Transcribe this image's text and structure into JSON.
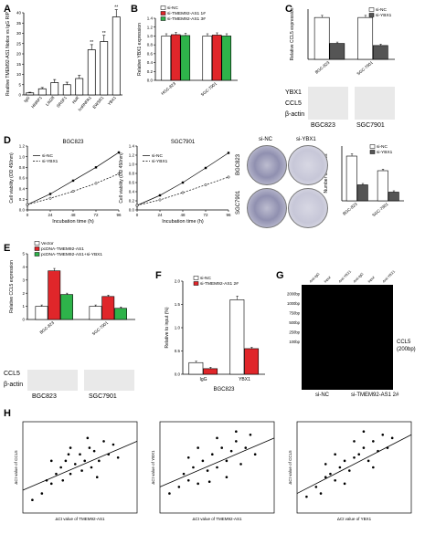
{
  "panels": {
    "A": "A",
    "B": "B",
    "C": "C",
    "D": "D",
    "E": "E",
    "F": "F",
    "G": "G",
    "H": "H"
  },
  "chart_data": [
    {
      "id": "A",
      "type": "bar",
      "ylabel": "Realtive TMEM92-AS1 Notice vs IgG RIP",
      "categories": [
        "IgG",
        "HNRP1",
        "LIN28",
        "SRSF1",
        "HuR",
        "hnRNPA1",
        "EWSR1",
        "YBX1"
      ],
      "values": [
        1,
        3,
        6,
        5,
        8,
        22,
        26,
        38
      ],
      "errors": [
        0.3,
        0.6,
        1.5,
        1.2,
        1.5,
        2.5,
        3.0,
        3.5
      ],
      "yticks": [
        0,
        5,
        10,
        15,
        20,
        25,
        30,
        35,
        40
      ],
      "ylim": [
        0,
        40
      ],
      "sig_labels": [
        "",
        "",
        "",
        "",
        "",
        "**",
        "**",
        "**"
      ]
    },
    {
      "id": "B",
      "type": "bar",
      "ylabel": "Relative YBX1 expression",
      "categories": [
        "HGC-823",
        "SGC-7901"
      ],
      "series": [
        {
          "name": "si-NC",
          "color": "#ffffff",
          "values": [
            1.0,
            1.0
          ]
        },
        {
          "name": "si-TMEM92-AS1 1#",
          "color": "#e0262a",
          "values": [
            1.03,
            1.02
          ]
        },
        {
          "name": "si-TMEM92-AS1 3#",
          "color": "#2eb34a",
          "values": [
            1.01,
            1.0
          ]
        }
      ],
      "yticks": [
        "0.0",
        "0.2",
        "0.4",
        "0.6",
        "0.8",
        "1.0",
        "1.2",
        "1.4"
      ],
      "ylim": [
        0,
        1.4
      ]
    },
    {
      "id": "C",
      "type": "bar",
      "ylabel": "Relative CCL5 expression",
      "categories": [
        "BGC-823",
        "SGC-7901"
      ],
      "series": [
        {
          "name": "si-NC",
          "color": "#ffffff",
          "values": [
            1.0,
            1.0
          ]
        },
        {
          "name": "si-YBX1",
          "color": "#555555",
          "values": [
            0.38,
            0.33
          ]
        }
      ],
      "ylim": [
        0,
        1.2
      ]
    },
    {
      "id": "D1",
      "type": "line",
      "title": "BGC823",
      "xlabel": "Incubation time (h)",
      "ylabel": "Cell viability (OD 450nm)",
      "x": [
        0,
        24,
        48,
        72,
        96
      ],
      "xticks": [
        "0",
        "24",
        "48",
        "72",
        "96"
      ],
      "yticks": [
        "0.0",
        "0.2",
        "0.4",
        "0.6",
        "0.8",
        "1.0",
        "1.2"
      ],
      "ylim": [
        0,
        1.2
      ],
      "series": [
        {
          "name": "si-NC",
          "values": [
            0.1,
            0.3,
            0.55,
            0.8,
            1.08
          ]
        },
        {
          "name": "si-YBX1",
          "values": [
            0.1,
            0.22,
            0.35,
            0.5,
            0.68
          ]
        }
      ]
    },
    {
      "id": "D2",
      "type": "line",
      "title": "SGC7901",
      "xlabel": "Incubation time (h)",
      "ylabel": "Cell viability (OD 450nm)",
      "x": [
        0,
        24,
        48,
        72,
        96
      ],
      "xticks": [
        "0",
        "24",
        "48",
        "72",
        "96"
      ],
      "yticks": [
        "0.0",
        "0.2",
        "0.4",
        "0.6",
        "0.8",
        "1.0",
        "1.2",
        "1.4"
      ],
      "ylim": [
        0,
        1.4
      ],
      "series": [
        {
          "name": "si-NC",
          "values": [
            0.1,
            0.32,
            0.6,
            0.92,
            1.25
          ]
        },
        {
          "name": "si-YBX1",
          "values": [
            0.1,
            0.22,
            0.38,
            0.55,
            0.72
          ]
        }
      ]
    },
    {
      "id": "D3",
      "type": "bar",
      "ylabel": "Number of colonies",
      "categories": [
        "BGC-823",
        "SGC-7901"
      ],
      "series": [
        {
          "name": "si-NC",
          "color": "#ffffff",
          "values": [
            490,
            330
          ]
        },
        {
          "name": "si-YBX1",
          "color": "#555555",
          "values": [
            175,
            95
          ]
        }
      ],
      "ylim": [
        0,
        600
      ]
    },
    {
      "id": "E",
      "type": "bar",
      "ylabel": "Relative CCL5 expression",
      "categories": [
        "BGC-823",
        "SGC-7901"
      ],
      "series": [
        {
          "name": "Vector",
          "color": "#ffffff",
          "values": [
            1.0,
            1.0
          ]
        },
        {
          "name": "pcDNA-TMEM92-AS1",
          "color": "#e0262a",
          "values": [
            3.7,
            1.75
          ]
        },
        {
          "name": "pcDNA-TMEM92-AS1+si-YBX1",
          "color": "#2eb34a",
          "values": [
            1.9,
            0.85
          ]
        }
      ],
      "yticks": [
        "0",
        "1",
        "2",
        "3",
        "4",
        "5"
      ],
      "ylim": [
        0,
        5
      ]
    },
    {
      "id": "F",
      "type": "bar",
      "xlabel": "BGC823",
      "ylabel": "Relative to input (%)",
      "categories": [
        "IgG",
        "YBX1"
      ],
      "series": [
        {
          "name": "si-NC",
          "color": "#ffffff",
          "values": [
            0.25,
            1.6
          ]
        },
        {
          "name": "si-TMEM92-AS1 2#",
          "color": "#e0262a",
          "values": [
            0.12,
            0.55
          ]
        }
      ],
      "yticks": [
        "0.0",
        "0.5",
        "1.0",
        "1.5",
        "2.0"
      ],
      "ylim": [
        0,
        2.0
      ]
    },
    {
      "id": "H1",
      "type": "scatter",
      "xlabel": "ΔCt value of TMEM92-AS1",
      "ylabel": "ΔCt value of CCL5",
      "points": [
        [
          1,
          2
        ],
        [
          2,
          3
        ],
        [
          2.5,
          5
        ],
        [
          3,
          4.5
        ],
        [
          3.5,
          6
        ],
        [
          4,
          7
        ],
        [
          4.2,
          5
        ],
        [
          4.5,
          8
        ],
        [
          5,
          6
        ],
        [
          5.5,
          7.5
        ],
        [
          6,
          9
        ],
        [
          6.2,
          6.5
        ],
        [
          6.5,
          8
        ],
        [
          7,
          10
        ],
        [
          7.2,
          7
        ],
        [
          7.5,
          9.5
        ],
        [
          8,
          8
        ],
        [
          8.5,
          11
        ],
        [
          9,
          9
        ],
        [
          9.5,
          10.5
        ],
        [
          10,
          8.5
        ],
        [
          5,
          10
        ],
        [
          3,
          8
        ],
        [
          7.8,
          5.5
        ],
        [
          6.8,
          11.5
        ],
        [
          4.8,
          9
        ]
      ],
      "fit": [
        [
          0,
          3.5
        ],
        [
          12,
          11
        ]
      ],
      "xlim": [
        0,
        12
      ],
      "ylim": [
        0,
        14
      ]
    },
    {
      "id": "H2",
      "type": "scatter",
      "xlabel": "ΔCt value of TMEM92-AS1",
      "ylabel": "ΔCt value of YBX1",
      "points": [
        [
          1,
          3
        ],
        [
          2,
          4
        ],
        [
          2.5,
          6
        ],
        [
          3,
          5
        ],
        [
          3.5,
          7
        ],
        [
          4,
          4.5
        ],
        [
          4.5,
          8
        ],
        [
          5,
          6.5
        ],
        [
          5.5,
          9
        ],
        [
          6,
          7
        ],
        [
          6.5,
          10
        ],
        [
          7,
          8
        ],
        [
          7.5,
          9.5
        ],
        [
          8,
          11
        ],
        [
          8.5,
          7.5
        ],
        [
          9,
          10
        ],
        [
          9.5,
          12
        ],
        [
          10,
          9
        ],
        [
          4,
          10
        ],
        [
          6,
          11.5
        ],
        [
          3,
          8.5
        ],
        [
          7,
          5.5
        ],
        [
          8,
          12.5
        ],
        [
          5.2,
          4.8
        ]
      ],
      "fit": [
        [
          0,
          4
        ],
        [
          12,
          11.5
        ]
      ],
      "xlim": [
        0,
        12
      ],
      "ylim": [
        0,
        14
      ]
    },
    {
      "id": "H3",
      "type": "scatter",
      "xlabel": "ΔCt value of YBX1",
      "ylabel": "ΔCt value of CCL5",
      "points": [
        [
          1,
          2.5
        ],
        [
          2,
          4
        ],
        [
          2.5,
          3
        ],
        [
          3,
          5.5
        ],
        [
          3.5,
          6
        ],
        [
          4,
          5
        ],
        [
          4.5,
          7
        ],
        [
          5,
          8
        ],
        [
          5.5,
          6.5
        ],
        [
          6,
          8.5
        ],
        [
          6.5,
          9
        ],
        [
          7,
          10
        ],
        [
          7.5,
          8
        ],
        [
          8,
          11
        ],
        [
          8.5,
          9.5
        ],
        [
          9,
          12
        ],
        [
          9.5,
          10
        ],
        [
          10,
          11.5
        ],
        [
          4,
          9
        ],
        [
          6,
          11
        ],
        [
          8,
          7
        ],
        [
          3,
          7.5
        ],
        [
          7,
          12.5
        ],
        [
          5,
          4.5
        ]
      ],
      "fit": [
        [
          0,
          3
        ],
        [
          12,
          12
        ]
      ],
      "xlim": [
        0,
        12
      ],
      "ylim": [
        0,
        14
      ]
    }
  ],
  "blots": {
    "C": {
      "rows": [
        "YBX1",
        "CCL5",
        "β-actin"
      ],
      "lanes": [
        "si-NC",
        "si-YBX1",
        "si-NC",
        "si-YBX1"
      ],
      "groups": [
        "BGC823",
        "SGC7901"
      ]
    },
    "E": {
      "rows": [
        "CCL5",
        "β-actin"
      ],
      "lanes": [
        "Vector",
        "pcDNA-TMEM92-AS1",
        "pcDNA-TMEM92-AS1 +si-YBX1",
        "Vector",
        "pcDNA-TMEM92-AS1",
        "pcDNA-TMEM92-AS1 +si-YBX1"
      ],
      "groups": [
        "BGC823",
        "SGC7901"
      ]
    }
  },
  "colony": {
    "cols": [
      "si-NC",
      "si-YBX1"
    ],
    "rows": [
      "BGC823",
      "SGC7901"
    ]
  },
  "gel": {
    "lanes": [
      "Anti-IgG",
      "Input",
      "Anti-YBX1",
      "Anti-IgG",
      "Input",
      "Anti-YBX1"
    ],
    "markers": [
      "2000bp",
      "1000bp",
      "750bp",
      "500bp",
      "250bp",
      "100bp"
    ],
    "band_label": "CCL5",
    "band_size": "(200bp)",
    "groups": [
      "si-NC",
      "si-TMEM92-AS1 2#"
    ]
  }
}
